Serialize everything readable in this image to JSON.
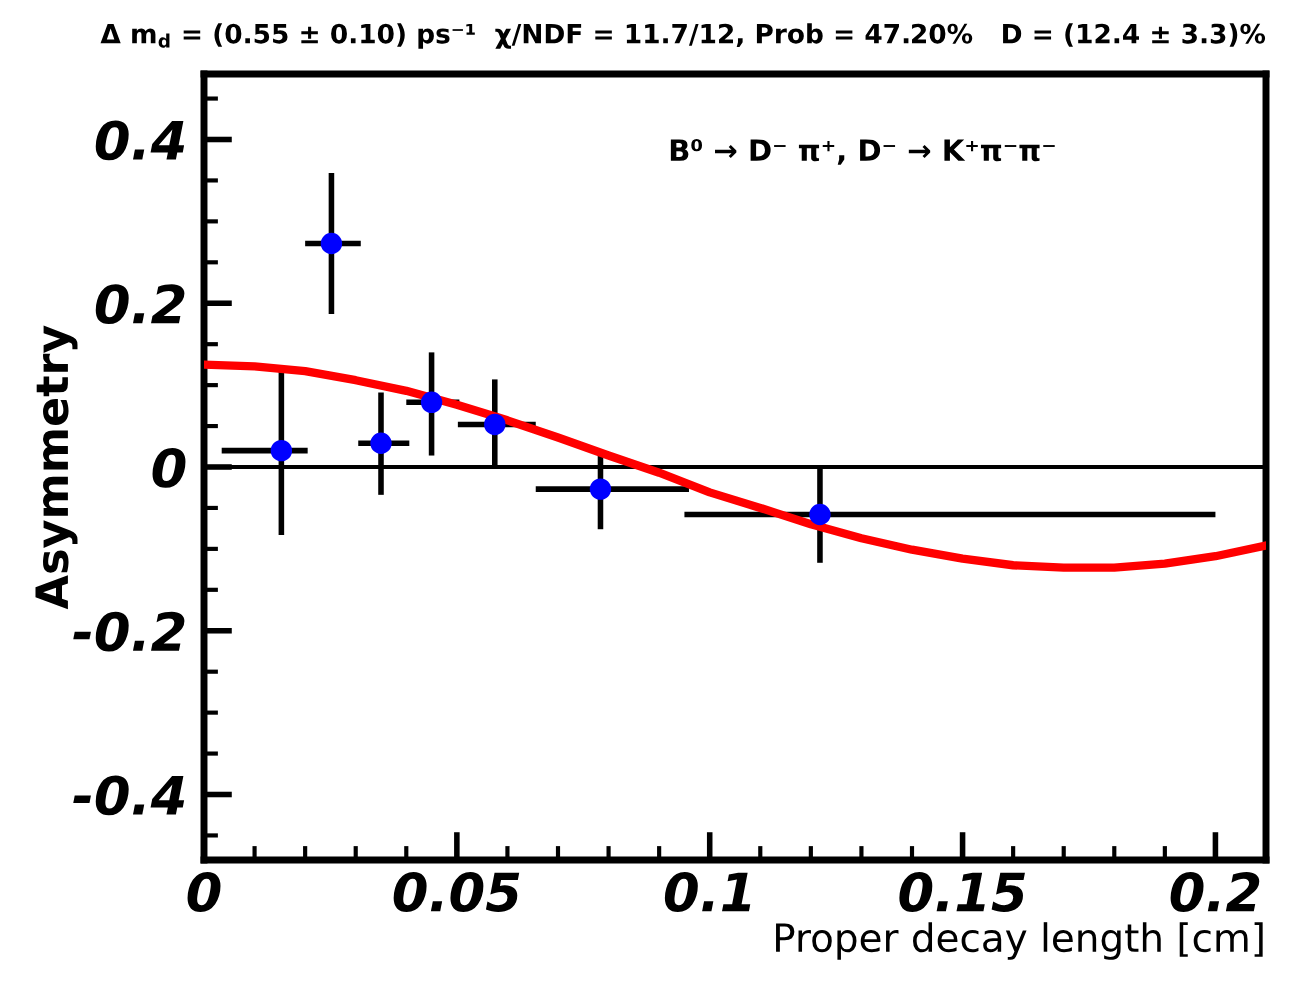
{
  "chart_data": {
    "type": "scatter",
    "title": "Δ m$_{d}$ = (0.55 ± 0.10) ps⁻¹  χ/NDF = 11.7/12, Prob = 47.20%   D = (12.4 ± 3.3)%",
    "xlabel": "Proper decay length [cm]",
    "ylabel": "Asymmetry",
    "annotations": [
      "B⁰ → D⁻ π⁺, D⁻ → K⁺π⁻π⁻"
    ],
    "xlim": [
      0,
      0.21
    ],
    "ylim": [
      -0.48,
      0.48
    ],
    "xticks": [
      0,
      0.05,
      0.1,
      0.15,
      0.2
    ],
    "yticks": [
      -0.4,
      -0.2,
      0,
      0.2,
      0.4
    ],
    "ref_lines": [
      {
        "axis": "y",
        "value": 0,
        "color": "#000000"
      }
    ],
    "grid": false,
    "legend": false,
    "series": [
      {
        "color": "#0000ff",
        "marker": "circle",
        "x": [
          0.0153,
          0.0252,
          0.035,
          0.045,
          0.0575,
          0.0784,
          0.1218
        ],
        "values": [
          0.02,
          0.273,
          0.029,
          0.079,
          0.052,
          -0.027,
          -0.058
        ],
        "errors": [
          [
            -0.083,
            0.124
          ],
          [
            0.187,
            0.359
          ],
          [
            -0.034,
            0.091
          ],
          [
            0.014,
            0.14
          ],
          [
            0,
            0.107
          ],
          [
            -0.076,
            0.017
          ],
          [
            -0.117,
            0
          ]
        ],
        "xerrors": [
          [
            0.0035,
            0.0205
          ],
          [
            0.02,
            0.031
          ],
          [
            0.0305,
            0.0406
          ],
          [
            0.04,
            0.0505
          ],
          [
            0.0502,
            0.0656
          ],
          [
            0.0656,
            0.0959
          ],
          [
            0.095,
            0.2
          ]
        ]
      },
      {
        "type": "line",
        "color": "#ff0000",
        "marker": "none",
        "line_style": "solid",
        "x": [
          0,
          0.01,
          0.02,
          0.03,
          0.04,
          0.05,
          0.06,
          0.07,
          0.08,
          0.09,
          0.1,
          0.11,
          0.12,
          0.13,
          0.14,
          0.15,
          0.16,
          0.17,
          0.18,
          0.19,
          0.2,
          0.21
        ],
        "values": [
          0.125,
          0.123,
          0.117,
          0.106,
          0.093,
          0.076,
          0.057,
          0.036,
          0.014,
          -0.007,
          -0.031,
          -0.05,
          -0.07,
          -0.087,
          -0.101,
          -0.112,
          -0.12,
          -0.123,
          -0.123,
          -0.118,
          -0.109,
          -0.096
        ]
      }
    ]
  }
}
